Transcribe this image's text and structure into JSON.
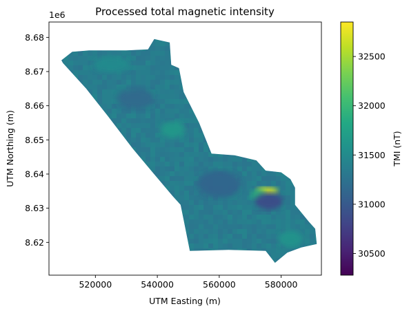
{
  "chart_data": {
    "type": "heatmap",
    "title": "Processed total magnetic intensity",
    "xlabel": "UTM Easting (m)",
    "ylabel": "UTM Northing (m)",
    "y_offset_label": "1e6",
    "x_ticks": [
      520000,
      540000,
      560000,
      580000
    ],
    "x_tick_labels": [
      "520000",
      "540000",
      "560000",
      "580000"
    ],
    "y_ticks": [
      8.62,
      8.63,
      8.64,
      8.65,
      8.66,
      8.67,
      8.68
    ],
    "y_tick_labels": [
      "8.62",
      "8.63",
      "8.64",
      "8.65",
      "8.66",
      "8.67",
      "8.68"
    ],
    "xlim": [
      505000,
      593000
    ],
    "ylim": [
      8.6104,
      8.6845
    ],
    "colorbar": {
      "label": "TMI (nT)",
      "colormap": "viridis",
      "range": [
        30280,
        32850
      ],
      "ticks": [
        30500,
        31000,
        31500,
        32000,
        32500
      ],
      "tick_labels": [
        "30500",
        "31000",
        "31500",
        "32000",
        "32500"
      ]
    },
    "survey_outline": [
      [
        509000,
        8.6733
      ],
      [
        512500,
        8.6758
      ],
      [
        518000,
        8.6762
      ],
      [
        530000,
        8.6762
      ],
      [
        537000,
        8.6765
      ],
      [
        539000,
        8.6795
      ],
      [
        544000,
        8.6785
      ],
      [
        544500,
        8.672
      ],
      [
        547000,
        8.671
      ],
      [
        548500,
        8.664
      ],
      [
        553500,
        8.655
      ],
      [
        557500,
        8.646
      ],
      [
        565000,
        8.6455
      ],
      [
        572000,
        8.644
      ],
      [
        575000,
        8.641
      ],
      [
        580000,
        8.6405
      ],
      [
        583000,
        8.6385
      ],
      [
        584500,
        8.636
      ],
      [
        584500,
        8.631
      ],
      [
        589000,
        8.626
      ],
      [
        591000,
        8.624
      ],
      [
        591500,
        8.6195
      ],
      [
        586500,
        8.6185
      ],
      [
        582000,
        8.617
      ],
      [
        578000,
        8.614
      ],
      [
        575000,
        8.6175
      ],
      [
        563000,
        8.6178
      ],
      [
        550500,
        8.6175
      ],
      [
        548500,
        8.6265
      ],
      [
        547500,
        8.631
      ],
      [
        545000,
        8.6335
      ],
      [
        538000,
        8.641
      ],
      [
        532000,
        8.6475
      ],
      [
        524000,
        8.657
      ],
      [
        517000,
        8.665
      ],
      [
        509500,
        8.6725
      ]
    ],
    "background_tmi": 31350,
    "anomalies": [
      {
        "x": 575500,
        "y": 8.635,
        "rx": 3500,
        "ry": 0.0012,
        "tmi": 32700
      },
      {
        "x": 572500,
        "y": 8.634,
        "rx": 2500,
        "ry": 0.0015,
        "tmi": 31900
      },
      {
        "x": 576000,
        "y": 8.632,
        "rx": 4500,
        "ry": 0.0025,
        "tmi": 30850
      },
      {
        "x": 560000,
        "y": 8.637,
        "rx": 7000,
        "ry": 0.004,
        "tmi": 31100
      },
      {
        "x": 533000,
        "y": 8.662,
        "rx": 6000,
        "ry": 0.003,
        "tmi": 31150
      },
      {
        "x": 545000,
        "y": 8.653,
        "rx": 4000,
        "ry": 0.0025,
        "tmi": 31650
      },
      {
        "x": 583000,
        "y": 8.621,
        "rx": 4000,
        "ry": 0.0025,
        "tmi": 31600
      },
      {
        "x": 525000,
        "y": 8.672,
        "rx": 6000,
        "ry": 0.0025,
        "tmi": 31500
      }
    ]
  }
}
